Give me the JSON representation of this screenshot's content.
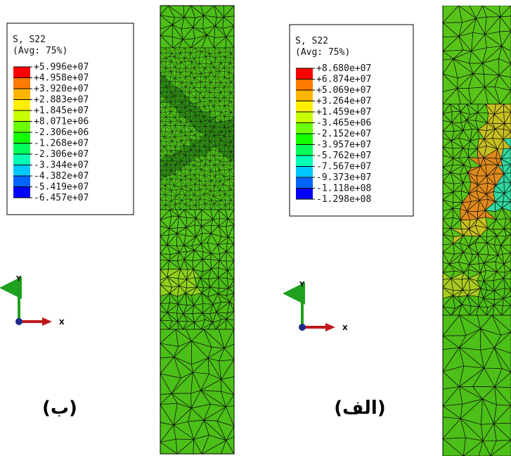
{
  "legend_colors": [
    "#ff0000",
    "#ff7a00",
    "#ffb400",
    "#ffee00",
    "#c8ff00",
    "#6aff00",
    "#14ff00",
    "#00ff5a",
    "#00ffb4",
    "#00c8ff",
    "#0064ff",
    "#0000ff"
  ],
  "panels": [
    {
      "label": "(ب)",
      "legend": {
        "title": "S, S22",
        "subtitle": "(Avg: 75%)",
        "values": [
          "+5.996e+07",
          "+4.958e+07",
          "+3.920e+07",
          "+2.883e+07",
          "+1.845e+07",
          "+8.071e+06",
          "-2.306e+06",
          "-1.268e+07",
          "-2.306e+07",
          "-3.344e+07",
          "-4.382e+07",
          "-5.419e+07",
          "-6.457e+07"
        ]
      },
      "axes": {
        "x": "X",
        "y": "Y"
      }
    },
    {
      "label": "(الف)",
      "legend": {
        "title": "S, S22",
        "subtitle": "(Avg: 75%)",
        "values": [
          "+8.680e+07",
          "+6.874e+07",
          "+5.069e+07",
          "+3.264e+07",
          "+1.459e+07",
          "-3.465e+06",
          "-2.152e+07",
          "-3.957e+07",
          "-5.762e+07",
          "-7.567e+07",
          "-9.373e+07",
          "-1.118e+08",
          "-1.298e+08"
        ]
      },
      "axes": {
        "x": "X",
        "y": "Y"
      }
    }
  ]
}
